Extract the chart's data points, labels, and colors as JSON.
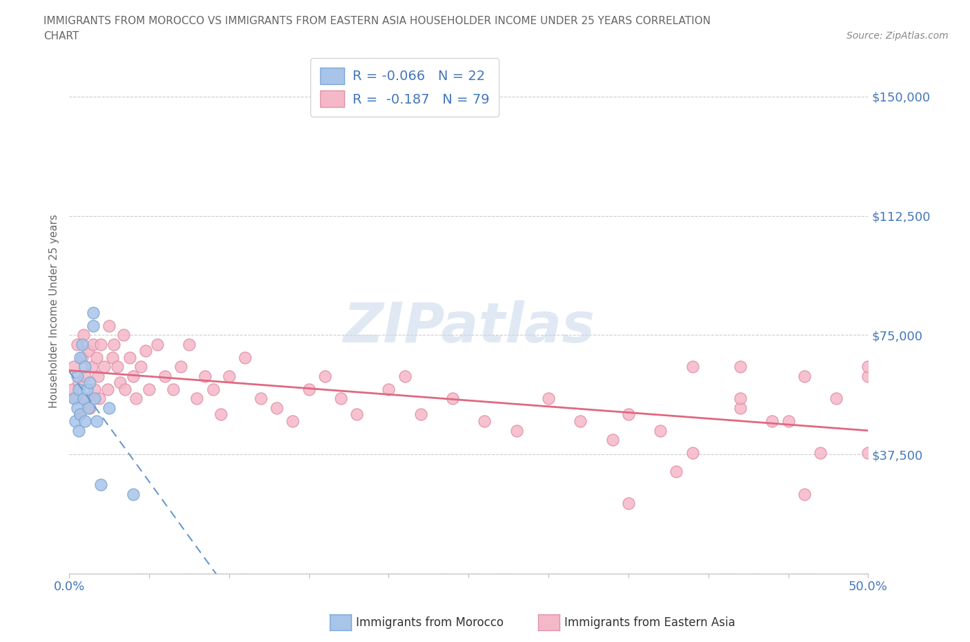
{
  "title_line1": "IMMIGRANTS FROM MOROCCO VS IMMIGRANTS FROM EASTERN ASIA HOUSEHOLDER INCOME UNDER 25 YEARS CORRELATION",
  "title_line2": "CHART",
  "source_text": "Source: ZipAtlas.com",
  "ylabel": "Householder Income Under 25 years",
  "xlim": [
    0.0,
    0.5
  ],
  "ylim": [
    0,
    165000
  ],
  "yticks": [
    0,
    37500,
    75000,
    112500,
    150000
  ],
  "ytick_labels": [
    "",
    "$37,500",
    "$75,000",
    "$112,500",
    "$150,000"
  ],
  "xticks": [
    0.0,
    0.05,
    0.1,
    0.15,
    0.2,
    0.25,
    0.3,
    0.35,
    0.4,
    0.45,
    0.5
  ],
  "xtick_edge_labels": [
    "0.0%",
    "50.0%"
  ],
  "background_color": "#ffffff",
  "grid_color": "#cccccc",
  "watermark": "ZIPatlas",
  "color_morocco": "#a8c4e8",
  "color_morocco_edge": "#7aa8d8",
  "color_morocco_line": "#6699cc",
  "color_east_asia": "#f5b8c8",
  "color_east_asia_edge": "#e090a8",
  "color_east_asia_line": "#e06880",
  "title_color": "#666666",
  "axis_label_color": "#4477bb",
  "morocco_x": [
    0.003,
    0.004,
    0.005,
    0.005,
    0.006,
    0.006,
    0.007,
    0.007,
    0.008,
    0.009,
    0.01,
    0.01,
    0.011,
    0.012,
    0.013,
    0.015,
    0.015,
    0.016,
    0.017,
    0.02,
    0.025,
    0.04
  ],
  "morocco_y": [
    55000,
    48000,
    62000,
    52000,
    58000,
    45000,
    68000,
    50000,
    72000,
    55000,
    65000,
    48000,
    58000,
    52000,
    60000,
    78000,
    82000,
    55000,
    48000,
    28000,
    52000,
    25000
  ],
  "east_asia_x": [
    0.002,
    0.003,
    0.004,
    0.005,
    0.006,
    0.007,
    0.008,
    0.009,
    0.01,
    0.011,
    0.012,
    0.013,
    0.014,
    0.015,
    0.016,
    0.017,
    0.018,
    0.019,
    0.02,
    0.022,
    0.024,
    0.025,
    0.027,
    0.028,
    0.03,
    0.032,
    0.034,
    0.035,
    0.038,
    0.04,
    0.042,
    0.045,
    0.048,
    0.05,
    0.055,
    0.06,
    0.065,
    0.07,
    0.075,
    0.08,
    0.085,
    0.09,
    0.095,
    0.1,
    0.11,
    0.12,
    0.13,
    0.14,
    0.15,
    0.16,
    0.17,
    0.18,
    0.2,
    0.21,
    0.22,
    0.24,
    0.26,
    0.28,
    0.3,
    0.32,
    0.34,
    0.35,
    0.37,
    0.39,
    0.42,
    0.44,
    0.46,
    0.48,
    0.5,
    0.39,
    0.42,
    0.45,
    0.47,
    0.5,
    0.35,
    0.38,
    0.42,
    0.46,
    0.5
  ],
  "east_asia_y": [
    58000,
    65000,
    55000,
    72000,
    60000,
    50000,
    68000,
    75000,
    62000,
    55000,
    70000,
    52000,
    65000,
    72000,
    58000,
    68000,
    62000,
    55000,
    72000,
    65000,
    58000,
    78000,
    68000,
    72000,
    65000,
    60000,
    75000,
    58000,
    68000,
    62000,
    55000,
    65000,
    70000,
    58000,
    72000,
    62000,
    58000,
    65000,
    72000,
    55000,
    62000,
    58000,
    50000,
    62000,
    68000,
    55000,
    52000,
    48000,
    58000,
    62000,
    55000,
    50000,
    58000,
    62000,
    50000,
    55000,
    48000,
    45000,
    55000,
    48000,
    42000,
    50000,
    45000,
    38000,
    52000,
    48000,
    62000,
    55000,
    38000,
    65000,
    55000,
    48000,
    38000,
    62000,
    22000,
    32000,
    65000,
    25000,
    65000
  ]
}
